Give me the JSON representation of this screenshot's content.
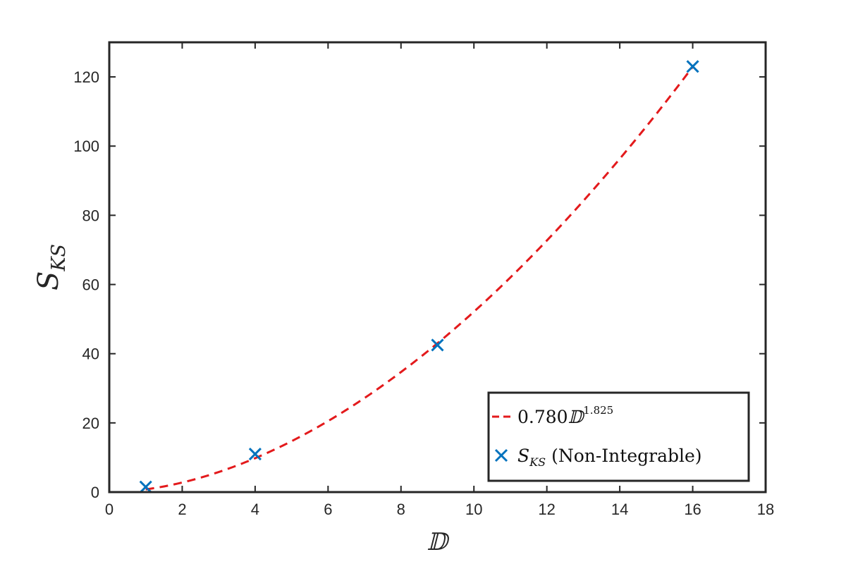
{
  "chart_data": {
    "type": "scatter",
    "title": "",
    "xlabel": "𝔻",
    "ylabel": {
      "main": "S",
      "sub": "KS"
    },
    "xlim": [
      0,
      18
    ],
    "ylim": [
      0,
      130
    ],
    "xticks": [
      0,
      2,
      4,
      6,
      8,
      10,
      12,
      14,
      16,
      18
    ],
    "yticks": [
      0,
      20,
      40,
      60,
      80,
      100,
      120
    ],
    "grid": false,
    "legend_position": "bottom-right",
    "series": [
      {
        "kind": "fit-line",
        "style": "dashed",
        "color": "#e31a1c",
        "coefficient": 0.78,
        "exponent": 1.825,
        "x_range": [
          1,
          16
        ],
        "legend": {
          "coef": "0.780",
          "var": "𝔻",
          "exp": "1.825"
        }
      },
      {
        "kind": "markers",
        "marker": "x",
        "color": "#0072bd",
        "x": [
          1,
          4,
          9,
          16
        ],
        "y": [
          1.5,
          11,
          42.5,
          123
        ],
        "legend": {
          "main": "S",
          "sub": "KS",
          "suffix": "(Non-Integrable)"
        }
      }
    ]
  }
}
